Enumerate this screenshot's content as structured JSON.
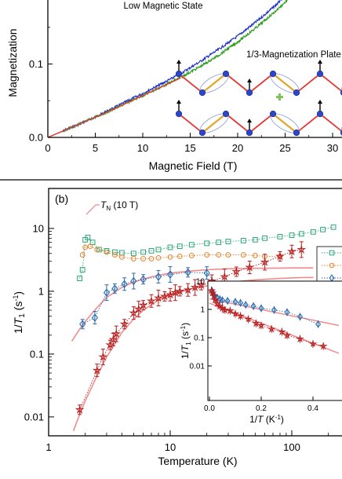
{
  "chart_data": [
    {
      "type": "line",
      "panel_label": "",
      "xlabel": "Magnetic Field (T)",
      "ylabel": "Magnetization",
      "xlim": [
        0,
        31
      ],
      "ylim": [
        0,
        0.2
      ],
      "x_ticks": [
        "0",
        "5",
        "10",
        "15",
        "20",
        "25",
        "30"
      ],
      "x_tick_values": [
        0,
        5,
        10,
        15,
        20,
        25,
        30
      ],
      "y_ticks": [
        "0.0",
        "0.1"
      ],
      "y_tick_values": [
        0,
        0.1
      ],
      "annotations": [
        "Low Magnetic State",
        "1/3-Magnetization Plate"
      ],
      "series": [
        {
          "color": "#1d2fc4",
          "x": [
            0,
            2,
            4,
            6,
            8,
            10,
            12,
            14,
            16,
            18,
            20,
            22,
            24,
            25.6
          ],
          "y": [
            0,
            0.011,
            0.022,
            0.034,
            0.047,
            0.06,
            0.073,
            0.087,
            0.103,
            0.12,
            0.138,
            0.158,
            0.18,
            0.2
          ]
        },
        {
          "color": "#2a9a1a",
          "x": [
            0,
            2,
            4,
            6,
            8,
            10,
            12,
            14,
            16,
            18,
            20,
            22,
            24,
            26.3
          ],
          "y": [
            0,
            0.011,
            0.022,
            0.033,
            0.045,
            0.057,
            0.069,
            0.082,
            0.096,
            0.112,
            0.13,
            0.15,
            0.172,
            0.2
          ]
        },
        {
          "color": "#e53935",
          "x": [
            0,
            2,
            4,
            6,
            8,
            10,
            12,
            14
          ],
          "y": [
            0,
            0.011,
            0.022,
            0.033,
            0.045,
            0.057,
            0.069,
            0.081
          ]
        }
      ]
    },
    {
      "type": "scatter",
      "panel_label": "(b)",
      "xlabel": "Temperature (K)",
      "ylabel": "1/T1 (s-1)",
      "xscale": "log",
      "yscale": "log",
      "xlim": [
        1,
        240
      ],
      "ylim": [
        0.005,
        15
      ],
      "x_ticks": [
        "1",
        "10",
        "100"
      ],
      "x_tick_values": [
        1,
        10,
        100
      ],
      "y_ticks": [
        "0.01",
        "0.1",
        "1",
        "10"
      ],
      "y_tick_values": [
        0.01,
        0.1,
        1,
        10
      ],
      "tn_suffix": " (10 T)",
      "series": [
        {
          "color": "#2aa877",
          "marker": "square",
          "x": [
            1.8,
            1.9,
            2.0,
            2.1,
            2.3,
            2.6,
            3,
            3.5,
            4,
            5,
            6,
            7,
            8,
            10,
            12,
            15,
            20,
            25,
            30,
            40,
            50,
            60,
            80,
            100,
            120,
            150,
            180,
            220
          ],
          "y": [
            1.6,
            2.2,
            6.6,
            7.2,
            6.0,
            4.6,
            4.4,
            4.2,
            4.1,
            4.0,
            4.2,
            4.4,
            4.6,
            5.0,
            5.2,
            5.5,
            5.8,
            6.0,
            6.2,
            6.4,
            6.6,
            7.0,
            7.4,
            7.8,
            8.2,
            8.8,
            9.6,
            10.5
          ]
        },
        {
          "color": "#e8822a",
          "marker": "circle",
          "x": [
            1.9,
            2.0,
            2.2,
            2.5,
            3,
            3.5,
            4,
            5,
            6,
            7,
            8,
            10,
            12,
            15,
            20,
            25,
            30,
            40,
            50,
            60,
            80
          ],
          "y": [
            3.8,
            5.0,
            5.2,
            4.6,
            4.2,
            3.8,
            3.5,
            3.3,
            3.3,
            3.3,
            3.4,
            3.5,
            3.6,
            3.7,
            3.8,
            3.8,
            3.8,
            3.8,
            3.7,
            3.6,
            3.6
          ]
        },
        {
          "color": "#2b6cb0",
          "marker": "diamond",
          "x": [
            1.9,
            2.4,
            3.0,
            3.5,
            4.2,
            5,
            6,
            8,
            10,
            14,
            20,
            27
          ],
          "y": [
            0.3,
            0.38,
            0.95,
            1.1,
            1.3,
            1.45,
            1.55,
            1.7,
            1.85,
            2.0,
            1.95,
            1.05
          ]
        },
        {
          "color": "#b71c1c",
          "marker": "star",
          "x": [
            1.8,
            2.5,
            2.8,
            3.2,
            3.4,
            3.6,
            4.2,
            5,
            5.5,
            6,
            7,
            8,
            9,
            10,
            11,
            12,
            14,
            16,
            18,
            22,
            28,
            35,
            45,
            60,
            80,
            100,
            120
          ],
          "y": [
            0.013,
            0.055,
            0.09,
            0.14,
            0.17,
            0.21,
            0.3,
            0.45,
            0.52,
            0.6,
            0.7,
            0.78,
            0.83,
            0.88,
            0.95,
            1.0,
            1.05,
            1.15,
            1.25,
            1.45,
            1.7,
            2.05,
            2.4,
            2.9,
            3.6,
            4.3,
            4.6
          ]
        }
      ],
      "fits": [
        {
          "color": "#f28b8b",
          "x": [
            1.55,
            1.8,
            2,
            2.5,
            3,
            4,
            5,
            7,
            10,
            15,
            20,
            30,
            50,
            80,
            100,
            150
          ],
          "y": [
            0.16,
            0.25,
            0.33,
            0.55,
            0.8,
            1.15,
            1.4,
            1.7,
            1.95,
            2.1,
            2.2,
            2.28,
            2.32,
            2.34,
            2.35,
            2.35
          ]
        },
        {
          "color": "#f28b8b",
          "x": [
            1.6,
            1.8,
            2,
            2.5,
            3,
            4,
            5,
            6,
            8,
            10,
            15,
            20,
            30,
            50,
            80,
            120,
            150
          ],
          "y": [
            0.006,
            0.011,
            0.018,
            0.045,
            0.09,
            0.22,
            0.36,
            0.5,
            0.72,
            0.88,
            1.1,
            1.22,
            1.38,
            1.52,
            1.6,
            1.65,
            1.66
          ]
        }
      ],
      "inset": {
        "xlabel": "1/T (K-1)",
        "ylabel": "1/T1 (s-1)",
        "xlim": [
          0,
          0.5
        ],
        "ylim": [
          0.005,
          10
        ],
        "x_ticks": [
          "0.0",
          "0.2",
          "0.4"
        ],
        "x_tick_values": [
          0,
          0.2,
          0.4
        ],
        "y_ticks": [
          "0.01",
          "0.1",
          "1",
          "10"
        ],
        "y_tick_values": [
          0.01,
          0.1,
          1,
          10
        ],
        "series": [
          {
            "color": "#2b6cb0",
            "marker": "diamond",
            "x": [
              0.01,
              0.015,
              0.02,
              0.03,
              0.04,
              0.05,
              0.07,
              0.1,
              0.12,
              0.14,
              0.17,
              0.2,
              0.25,
              0.3,
              0.35,
              0.42
            ],
            "y": [
              4.5,
              3.5,
              3.0,
              2.6,
              2.3,
              2.1,
              2.0,
              1.85,
              1.7,
              1.45,
              1.3,
              1.1,
              0.95,
              0.8,
              0.55,
              0.3
            ]
          },
          {
            "color": "#b71c1c",
            "marker": "star",
            "x": [
              0.008,
              0.012,
              0.017,
              0.022,
              0.03,
              0.04,
              0.05,
              0.06,
              0.08,
              0.1,
              0.12,
              0.15,
              0.18,
              0.2,
              0.24,
              0.28,
              0.3,
              0.35,
              0.4,
              0.44
            ],
            "y": [
              4.6,
              3.8,
              3.0,
              2.2,
              1.6,
              1.3,
              1.1,
              0.95,
              0.9,
              0.7,
              0.58,
              0.45,
              0.32,
              0.27,
              0.2,
              0.16,
              0.12,
              0.09,
              0.06,
              0.05
            ]
          }
        ],
        "fits": [
          {
            "color": "#f28b8b",
            "x": [
              0.0,
              0.5
            ],
            "y": [
              2.35,
              0.27
            ]
          },
          {
            "color": "#f28b8b",
            "x": [
              0.0,
              0.5
            ],
            "y": [
              1.66,
              0.028
            ]
          }
        ]
      },
      "legend_colors": [
        "#2aa877",
        "#e8822a",
        "#2b6cb0",
        "#b71c1c"
      ]
    }
  ]
}
